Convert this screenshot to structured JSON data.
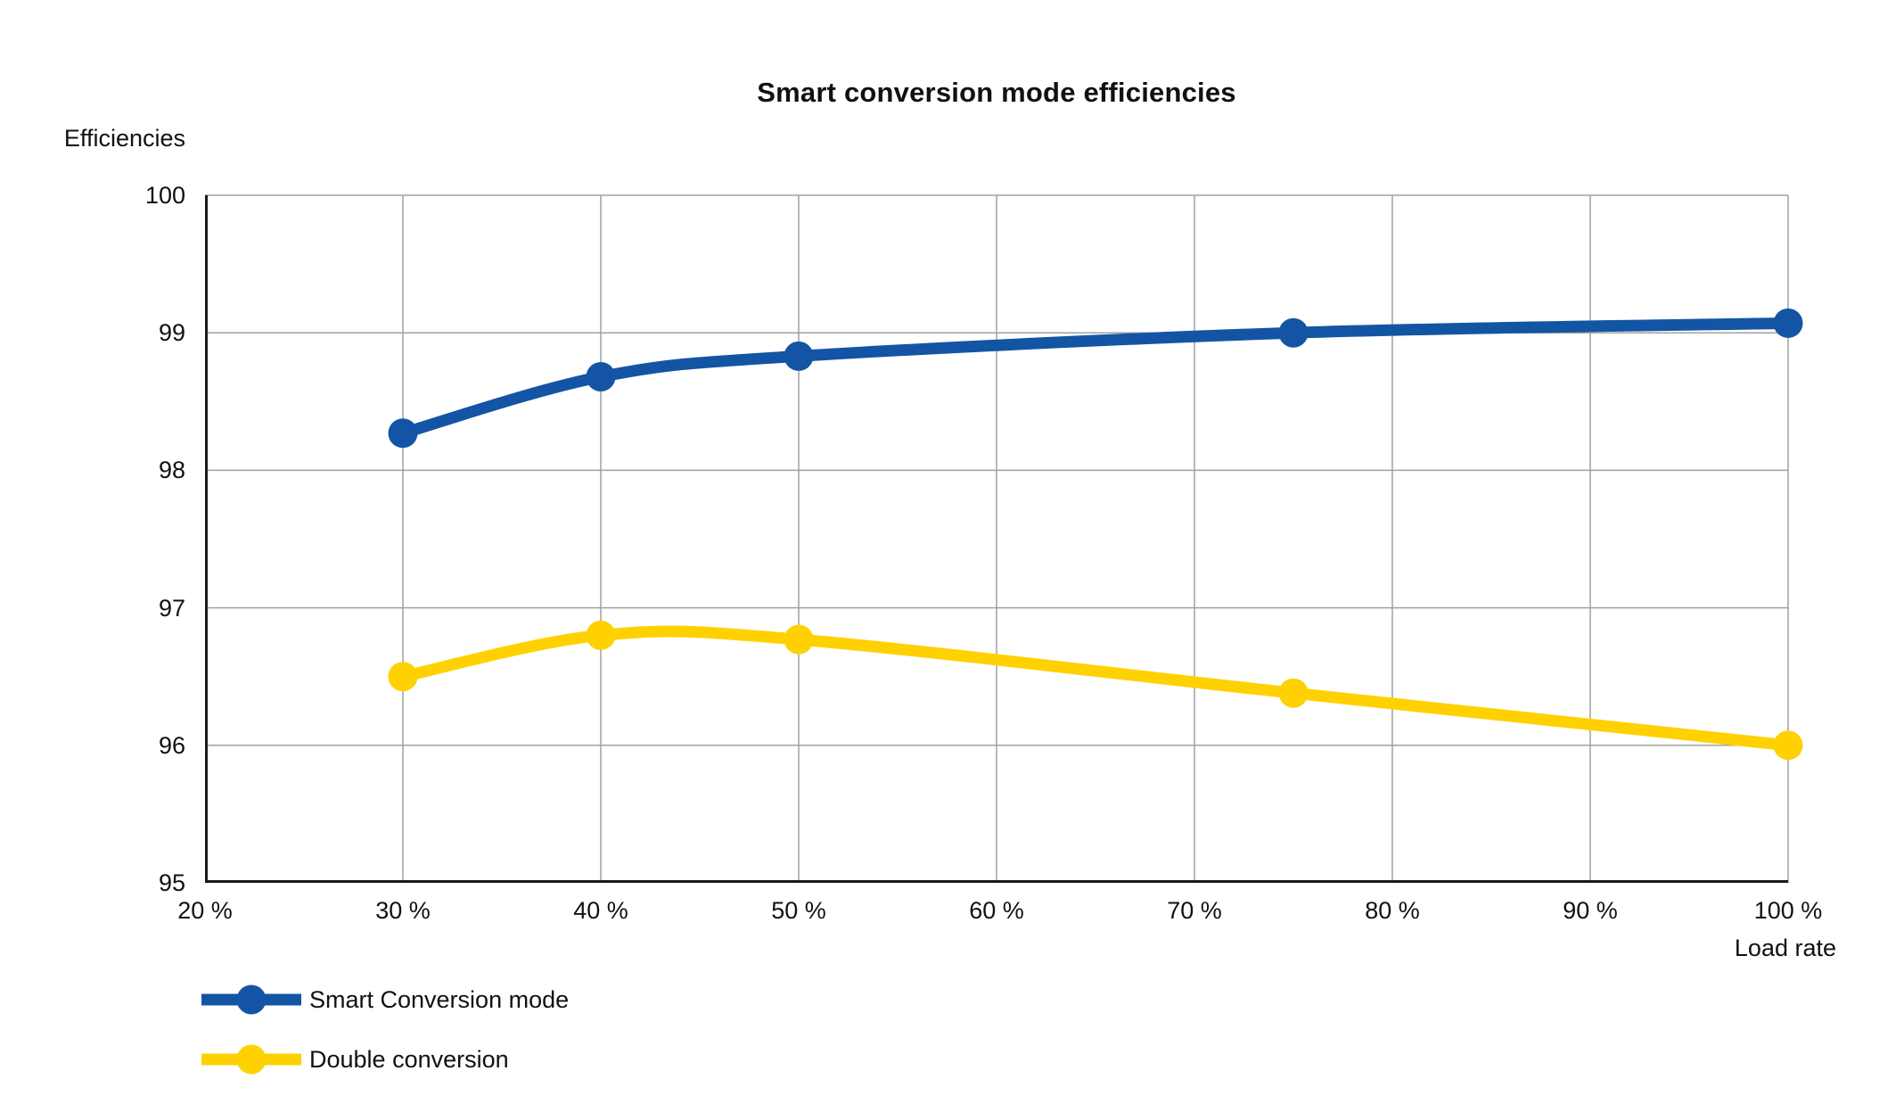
{
  "chart_data": {
    "type": "line",
    "title": "Smart conversion mode efficiencies",
    "xlabel": "Load rate",
    "ylabel": "Efficiencies",
    "xlim": [
      20,
      100
    ],
    "ylim": [
      95,
      100
    ],
    "grid": true,
    "legend_position": "bottom-left",
    "x_ticks": [
      {
        "value": 20,
        "label": "20 %"
      },
      {
        "value": 30,
        "label": "30 %"
      },
      {
        "value": 40,
        "label": "40 %"
      },
      {
        "value": 50,
        "label": "50 %"
      },
      {
        "value": 60,
        "label": "60 %"
      },
      {
        "value": 70,
        "label": "70 %"
      },
      {
        "value": 80,
        "label": "80 %"
      },
      {
        "value": 90,
        "label": "90 %"
      },
      {
        "value": 100,
        "label": "100 %"
      }
    ],
    "y_ticks": [
      {
        "value": 100,
        "label": "100"
      },
      {
        "value": 99,
        "label": "99"
      },
      {
        "value": 98,
        "label": "98"
      },
      {
        "value": 97,
        "label": "97"
      },
      {
        "value": 96,
        "label": "96"
      },
      {
        "value": 95,
        "label": "95"
      }
    ],
    "x": [
      30,
      40,
      50,
      75,
      100
    ],
    "series": [
      {
        "name": "Smart Conversion mode",
        "color": "#1355A4",
        "values": [
          98.27,
          98.68,
          98.83,
          99.0,
          99.07
        ]
      },
      {
        "name": "Double conversion",
        "color": "#FFD100",
        "values": [
          96.5,
          96.8,
          96.77,
          96.38,
          96.0
        ]
      }
    ]
  },
  "style_colors": {
    "gridline": "#A0A0A0",
    "axis": "#1A1A1A",
    "text": "#111111"
  }
}
